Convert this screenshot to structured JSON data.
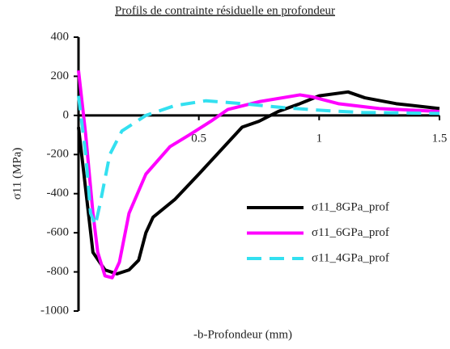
{
  "chart_data": {
    "type": "line",
    "title": "Profils de contrainte résiduelle en profondeur",
    "xlabel": "-b-Profondeur (mm)",
    "ylabel": "σ11 (MPa)",
    "xlim": [
      0,
      1.5
    ],
    "xticks": [
      0.5,
      1,
      1.5
    ],
    "ylim": [
      -1000,
      400
    ],
    "yticks": [
      -1000,
      -800,
      -600,
      -400,
      -200,
      0,
      200,
      400
    ],
    "series": [
      {
        "name": "σ11_8GPa_prof",
        "color": "#000000",
        "style": "solid",
        "x": [
          0,
          0.06,
          0.11,
          0.16,
          0.21,
          0.25,
          0.28,
          0.31,
          0.4,
          0.5,
          0.62,
          0.68,
          0.75,
          0.83,
          0.92,
          1.0,
          1.12,
          1.19,
          1.32,
          1.5
        ],
        "values": [
          -60,
          -700,
          -790,
          -810,
          -790,
          -740,
          -600,
          -520,
          -430,
          -300,
          -140,
          -60,
          -30,
          20,
          60,
          100,
          120,
          90,
          60,
          35
        ]
      },
      {
        "name": "σ11_6GPa_prof",
        "color": "#ff00ff",
        "style": "solid",
        "x": [
          0,
          0.03,
          0.06,
          0.08,
          0.11,
          0.14,
          0.17,
          0.21,
          0.28,
          0.38,
          0.46,
          0.55,
          0.62,
          0.75,
          0.92,
          0.97,
          1.08,
          1.25,
          1.5
        ],
        "values": [
          230,
          -100,
          -500,
          -700,
          -820,
          -830,
          -750,
          -500,
          -300,
          -160,
          -100,
          -30,
          30,
          70,
          105,
          95,
          60,
          35,
          20
        ]
      },
      {
        "name": "σ11_4GPa_prof",
        "color": "#33e0f0",
        "style": "dashed",
        "x": [
          0,
          0.03,
          0.05,
          0.07,
          0.09,
          0.13,
          0.18,
          0.28,
          0.4,
          0.53,
          0.68,
          0.85,
          1.02,
          1.18,
          1.5
        ],
        "values": [
          100,
          -200,
          -500,
          -560,
          -450,
          -200,
          -80,
          0,
          50,
          75,
          60,
          40,
          25,
          15,
          10
        ]
      }
    ]
  }
}
